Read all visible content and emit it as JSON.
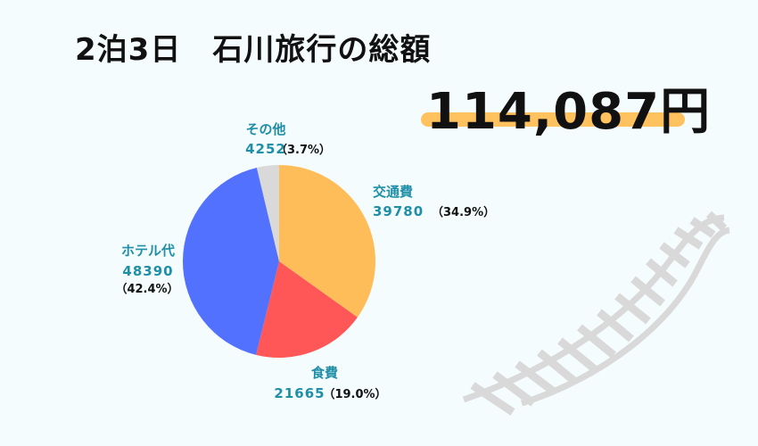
{
  "title": "2泊3日　石川旅行の総額",
  "total": "114,087円",
  "colors": {
    "accent": "#ffc25e",
    "label": "#1f8fa8",
    "background": "#f5fcfd"
  },
  "chart_data": {
    "type": "pie",
    "start": "top",
    "direction": "clockwise",
    "slices": [
      {
        "label": "交通費",
        "value": 39780,
        "percent": "（34.9%）",
        "color": "#ffbd59"
      },
      {
        "label": "食費",
        "value": 21665,
        "percent": "（19.0%）",
        "color": "#ff5757"
      },
      {
        "label": "ホテル代",
        "value": 48390,
        "percent": "（42.4%）",
        "color": "#5271ff"
      },
      {
        "label": "その他",
        "value": 4252,
        "percent": "（3.7%）",
        "color": "#d9d9d9"
      }
    ]
  }
}
